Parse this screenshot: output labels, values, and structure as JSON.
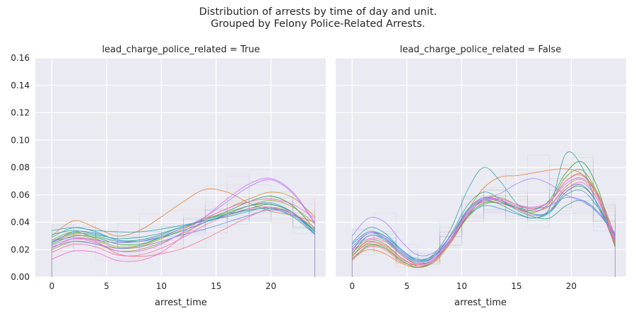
{
  "figure": {
    "title_line1": "Distribution of arrests by time of day and unit.",
    "title_line2": "Grouped by Felony Police-Related Arrests."
  },
  "chart_data": [
    {
      "type": "line",
      "title": "lead_charge_police_related = True",
      "xlabel": "arrest_time",
      "ylabel": "",
      "xlim": [
        -1.5,
        25
      ],
      "ylim": [
        0,
        0.16
      ],
      "xticks": [
        "0",
        "5",
        "10",
        "15",
        "20"
      ],
      "yticks": [
        "0.00",
        "0.02",
        "0.04",
        "0.06",
        "0.08",
        "0.10",
        "0.12",
        "0.14",
        "0.16"
      ],
      "grid": true,
      "x": [
        0,
        2,
        4,
        6,
        8,
        10,
        12,
        14,
        16,
        18,
        20,
        22,
        24
      ],
      "series": [
        {
          "color": "#f77189",
          "values": [
            0.021,
            0.028,
            0.026,
            0.017,
            0.015,
            0.017,
            0.021,
            0.028,
            0.036,
            0.044,
            0.05,
            0.047,
            0.034
          ]
        },
        {
          "color": "#e68032",
          "values": [
            0.03,
            0.041,
            0.036,
            0.03,
            0.034,
            0.044,
            0.055,
            0.064,
            0.062,
            0.054,
            0.048,
            0.045,
            0.04
          ]
        },
        {
          "color": "#c69432",
          "values": [
            0.025,
            0.031,
            0.027,
            0.021,
            0.022,
            0.028,
            0.035,
            0.043,
            0.05,
            0.057,
            0.062,
            0.058,
            0.044
          ]
        },
        {
          "color": "#a59c31",
          "values": [
            0.02,
            0.026,
            0.024,
            0.019,
            0.02,
            0.025,
            0.032,
            0.04,
            0.046,
            0.052,
            0.056,
            0.051,
            0.039
          ]
        },
        {
          "color": "#86a431",
          "values": [
            0.027,
            0.033,
            0.028,
            0.022,
            0.023,
            0.029,
            0.036,
            0.042,
            0.047,
            0.052,
            0.053,
            0.047,
            0.034
          ]
        },
        {
          "color": "#38a850",
          "values": [
            0.024,
            0.03,
            0.029,
            0.024,
            0.024,
            0.029,
            0.036,
            0.042,
            0.048,
            0.055,
            0.059,
            0.052,
            0.035
          ]
        },
        {
          "color": "#34a67e",
          "values": [
            0.026,
            0.032,
            0.03,
            0.026,
            0.026,
            0.029,
            0.034,
            0.04,
            0.045,
            0.05,
            0.053,
            0.047,
            0.033
          ]
        },
        {
          "color": "#36a396",
          "values": [
            0.031,
            0.034,
            0.031,
            0.028,
            0.029,
            0.032,
            0.037,
            0.042,
            0.046,
            0.049,
            0.05,
            0.044,
            0.031
          ]
        },
        {
          "color": "#38a2ab",
          "values": [
            0.029,
            0.036,
            0.033,
            0.027,
            0.027,
            0.031,
            0.037,
            0.041,
            0.044,
            0.048,
            0.051,
            0.046,
            0.033
          ]
        },
        {
          "color": "#3aa0bf",
          "values": [
            0.034,
            0.036,
            0.034,
            0.033,
            0.033,
            0.035,
            0.038,
            0.041,
            0.045,
            0.049,
            0.05,
            0.046,
            0.034
          ]
        },
        {
          "color": "#3c9de1",
          "values": [
            0.025,
            0.033,
            0.032,
            0.027,
            0.026,
            0.029,
            0.034,
            0.04,
            0.046,
            0.052,
            0.054,
            0.047,
            0.031
          ]
        },
        {
          "color": "#6f8ff4",
          "values": [
            0.022,
            0.026,
            0.024,
            0.021,
            0.022,
            0.026,
            0.031,
            0.035,
            0.04,
            0.045,
            0.049,
            0.045,
            0.032
          ]
        },
        {
          "color": "#a682f4",
          "values": [
            0.026,
            0.029,
            0.027,
            0.025,
            0.026,
            0.03,
            0.036,
            0.044,
            0.055,
            0.066,
            0.071,
            0.061,
            0.039
          ]
        },
        {
          "color": "#da6df3",
          "values": [
            0.023,
            0.028,
            0.025,
            0.019,
            0.019,
            0.024,
            0.033,
            0.044,
            0.057,
            0.068,
            0.072,
            0.062,
            0.04
          ]
        },
        {
          "color": "#f565cc",
          "values": [
            0.013,
            0.019,
            0.018,
            0.012,
            0.012,
            0.018,
            0.03,
            0.042,
            0.05,
            0.055,
            0.057,
            0.053,
            0.043
          ]
        },
        {
          "color": "#f76ba7",
          "values": [
            0.018,
            0.024,
            0.022,
            0.016,
            0.016,
            0.021,
            0.029,
            0.038,
            0.045,
            0.05,
            0.051,
            0.046,
            0.036
          ]
        }
      ]
    },
    {
      "type": "line",
      "title": "lead_charge_police_related = False",
      "xlabel": "arrest_time",
      "ylabel": "",
      "xlim": [
        -1.5,
        25
      ],
      "ylim": [
        0,
        0.16
      ],
      "xticks": [
        "0",
        "5",
        "10",
        "15",
        "20"
      ],
      "grid": true,
      "x": [
        0,
        1.5,
        3,
        4.5,
        6,
        7.5,
        9,
        10.5,
        12,
        13.5,
        15,
        16.5,
        18,
        19.5,
        21,
        22.5,
        24
      ],
      "series": [
        {
          "color": "#f77189",
          "values": [
            0.012,
            0.022,
            0.02,
            0.011,
            0.009,
            0.016,
            0.03,
            0.048,
            0.058,
            0.056,
            0.05,
            0.045,
            0.048,
            0.062,
            0.067,
            0.052,
            0.022
          ]
        },
        {
          "color": "#e68032",
          "values": [
            0.014,
            0.02,
            0.017,
            0.01,
            0.007,
            0.012,
            0.028,
            0.048,
            0.065,
            0.073,
            0.074,
            0.076,
            0.078,
            0.079,
            0.075,
            0.06,
            0.03
          ]
        },
        {
          "color": "#c69432",
          "values": [
            0.018,
            0.026,
            0.022,
            0.013,
            0.009,
            0.013,
            0.027,
            0.045,
            0.056,
            0.055,
            0.05,
            0.048,
            0.052,
            0.066,
            0.071,
            0.055,
            0.025
          ]
        },
        {
          "color": "#a59c31",
          "values": [
            0.016,
            0.024,
            0.021,
            0.012,
            0.007,
            0.011,
            0.025,
            0.044,
            0.057,
            0.058,
            0.053,
            0.05,
            0.055,
            0.07,
            0.075,
            0.058,
            0.026
          ]
        },
        {
          "color": "#86a431",
          "values": [
            0.015,
            0.027,
            0.024,
            0.014,
            0.008,
            0.012,
            0.026,
            0.043,
            0.053,
            0.054,
            0.05,
            0.047,
            0.054,
            0.073,
            0.078,
            0.059,
            0.024
          ]
        },
        {
          "color": "#38a850",
          "values": [
            0.013,
            0.023,
            0.021,
            0.012,
            0.007,
            0.012,
            0.026,
            0.044,
            0.054,
            0.054,
            0.051,
            0.049,
            0.056,
            0.076,
            0.084,
            0.063,
            0.022
          ]
        },
        {
          "color": "#34a67e",
          "values": [
            0.017,
            0.03,
            0.027,
            0.016,
            0.01,
            0.013,
            0.028,
            0.047,
            0.056,
            0.053,
            0.047,
            0.043,
            0.047,
            0.062,
            0.066,
            0.052,
            0.024
          ]
        },
        {
          "color": "#36a396",
          "values": [
            0.02,
            0.032,
            0.028,
            0.017,
            0.011,
            0.015,
            0.031,
            0.052,
            0.062,
            0.057,
            0.049,
            0.044,
            0.043,
            0.052,
            0.056,
            0.047,
            0.03
          ]
        },
        {
          "color": "#38a2ab",
          "values": [
            0.022,
            0.032,
            0.03,
            0.019,
            0.012,
            0.017,
            0.035,
            0.063,
            0.08,
            0.07,
            0.054,
            0.046,
            0.05,
            0.09,
            0.08,
            0.05,
            0.03
          ]
        },
        {
          "color": "#3aa0bf",
          "values": [
            0.025,
            0.036,
            0.032,
            0.02,
            0.013,
            0.016,
            0.03,
            0.049,
            0.058,
            0.055,
            0.051,
            0.046,
            0.047,
            0.06,
            0.063,
            0.05,
            0.031
          ]
        },
        {
          "color": "#3c9de1",
          "values": [
            0.024,
            0.033,
            0.03,
            0.02,
            0.012,
            0.015,
            0.028,
            0.044,
            0.052,
            0.05,
            0.046,
            0.043,
            0.048,
            0.064,
            0.067,
            0.052,
            0.028
          ]
        },
        {
          "color": "#6f8ff4",
          "values": [
            0.02,
            0.03,
            0.028,
            0.018,
            0.011,
            0.015,
            0.03,
            0.048,
            0.057,
            0.056,
            0.052,
            0.05,
            0.052,
            0.058,
            0.056,
            0.046,
            0.031
          ]
        },
        {
          "color": "#a682f4",
          "values": [
            0.03,
            0.043,
            0.04,
            0.026,
            0.016,
            0.018,
            0.03,
            0.047,
            0.057,
            0.061,
            0.068,
            0.072,
            0.068,
            0.06,
            0.055,
            0.047,
            0.032
          ]
        },
        {
          "color": "#da6df3",
          "values": [
            0.022,
            0.032,
            0.029,
            0.018,
            0.011,
            0.014,
            0.027,
            0.045,
            0.056,
            0.057,
            0.053,
            0.051,
            0.055,
            0.068,
            0.072,
            0.058,
            0.029
          ]
        },
        {
          "color": "#f565cc",
          "values": [
            0.019,
            0.028,
            0.026,
            0.016,
            0.009,
            0.013,
            0.028,
            0.046,
            0.055,
            0.054,
            0.05,
            0.048,
            0.052,
            0.064,
            0.069,
            0.055,
            0.027
          ]
        },
        {
          "color": "#f76ba7",
          "values": [
            0.015,
            0.025,
            0.023,
            0.014,
            0.008,
            0.012,
            0.026,
            0.045,
            0.056,
            0.056,
            0.052,
            0.05,
            0.055,
            0.07,
            0.074,
            0.057,
            0.024
          ]
        }
      ]
    }
  ]
}
